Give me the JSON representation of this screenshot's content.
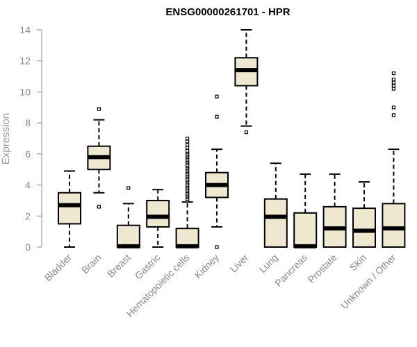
{
  "chart_data": {
    "type": "boxplot",
    "title": "ENSG00000261701 - HPR",
    "xlabel": "",
    "ylabel": "Expression",
    "ylim": [
      0,
      14
    ],
    "yticks": [
      0,
      2,
      4,
      6,
      8,
      10,
      12,
      14
    ],
    "grid": false,
    "box_fill": "#efe8d1",
    "box_stroke": "#000000",
    "categories": [
      "Bladder",
      "Brain",
      "Breast",
      "Gastric",
      "Hematopoietic cells",
      "Kidney",
      "Liver",
      "Lung",
      "Pancreas",
      "Prostate",
      "Skin",
      "Unknown / Other"
    ],
    "boxes": [
      {
        "whisker_low": 0,
        "q1": 1.5,
        "median": 2.7,
        "q3": 3.5,
        "whisker_high": 4.9,
        "outliers": []
      },
      {
        "whisker_low": 3.5,
        "q1": 5.0,
        "median": 5.8,
        "q3": 6.5,
        "whisker_high": 8.2,
        "outliers": [
          2.6,
          2.6,
          8.9
        ]
      },
      {
        "whisker_low": 0,
        "q1": 0,
        "median": 0.05,
        "q3": 1.4,
        "whisker_high": 2.8,
        "outliers": [
          3.8
        ]
      },
      {
        "whisker_low": 0,
        "q1": 1.3,
        "median": 1.95,
        "q3": 3.0,
        "whisker_high": 3.7,
        "outliers": []
      },
      {
        "whisker_low": 0,
        "q1": 0,
        "median": 0.05,
        "q3": 1.2,
        "whisker_high": 2.9,
        "outliers": [
          3.0,
          3.1,
          3.2,
          3.3,
          3.4,
          3.5,
          3.6,
          3.7,
          3.8,
          3.9,
          4.0,
          4.1,
          4.2,
          4.3,
          4.4,
          4.5,
          4.6,
          4.7,
          4.8,
          4.9,
          5.0,
          5.1,
          5.2,
          5.3,
          5.4,
          5.5,
          5.6,
          5.7,
          5.8,
          5.9,
          6.0,
          6.1,
          6.2,
          6.4,
          6.6,
          6.8,
          7.0
        ]
      },
      {
        "whisker_low": 1.3,
        "q1": 3.2,
        "median": 4.0,
        "q3": 4.8,
        "whisker_high": 6.3,
        "outliers": [
          0,
          8.4,
          9.7
        ]
      },
      {
        "whisker_low": 7.8,
        "q1": 10.4,
        "median": 11.4,
        "q3": 12.2,
        "whisker_high": 14.0,
        "outliers": [
          7.4
        ]
      },
      {
        "whisker_low": 0,
        "q1": 0,
        "median": 1.95,
        "q3": 3.1,
        "whisker_high": 5.4,
        "outliers": []
      },
      {
        "whisker_low": 0,
        "q1": 0,
        "median": 0.05,
        "q3": 2.2,
        "whisker_high": 4.7,
        "outliers": []
      },
      {
        "whisker_low": 0,
        "q1": 0,
        "median": 1.2,
        "q3": 2.6,
        "whisker_high": 4.7,
        "outliers": []
      },
      {
        "whisker_low": 0,
        "q1": 0,
        "median": 1.05,
        "q3": 2.5,
        "whisker_high": 4.2,
        "outliers": []
      },
      {
        "whisker_low": 0,
        "q1": 0,
        "median": 1.2,
        "q3": 2.8,
        "whisker_high": 6.3,
        "outliers": [
          8.5,
          9.0,
          10.2,
          10.4,
          10.6,
          10.8,
          11.2
        ]
      }
    ]
  }
}
